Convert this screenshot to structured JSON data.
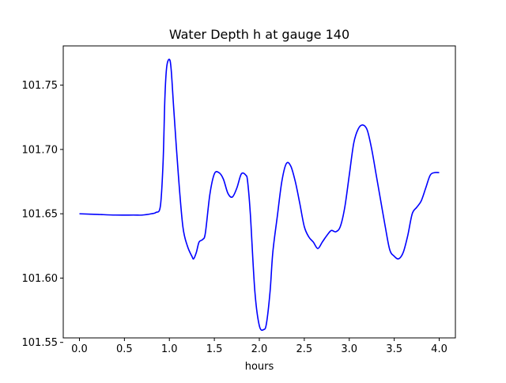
{
  "chart_data": {
    "type": "line",
    "title": "Water Depth h at gauge 140",
    "xlabel": "hours",
    "ylabel": "",
    "xlim": [
      -0.18,
      4.18
    ],
    "ylim": [
      101.5535,
      101.7805
    ],
    "xticks": [
      0.0,
      0.5,
      1.0,
      1.5,
      2.0,
      2.5,
      3.0,
      3.5,
      4.0
    ],
    "xtick_labels": [
      "0.0",
      "0.5",
      "1.0",
      "1.5",
      "2.0",
      "2.5",
      "3.0",
      "3.5",
      "4.0"
    ],
    "yticks": [
      101.55,
      101.6,
      101.65,
      101.7,
      101.75
    ],
    "ytick_labels": [
      "101.55",
      "101.60",
      "101.65",
      "101.70",
      "101.75"
    ],
    "grid": false,
    "line_color": "#0000ff",
    "series": [
      {
        "x": [
          0.0,
          0.2,
          0.4,
          0.6,
          0.7,
          0.8,
          0.85,
          0.9,
          0.93,
          0.95,
          0.97,
          1.0,
          1.02,
          1.05,
          1.1,
          1.15,
          1.2,
          1.25,
          1.27,
          1.3,
          1.33,
          1.37,
          1.4,
          1.45,
          1.5,
          1.55,
          1.6,
          1.65,
          1.7,
          1.75,
          1.8,
          1.85,
          1.87,
          1.9,
          1.95,
          2.0,
          2.05,
          2.08,
          2.12,
          2.15,
          2.2,
          2.25,
          2.3,
          2.35,
          2.4,
          2.45,
          2.5,
          2.55,
          2.6,
          2.65,
          2.7,
          2.75,
          2.8,
          2.85,
          2.9,
          2.95,
          3.0,
          3.05,
          3.1,
          3.15,
          3.2,
          3.25,
          3.3,
          3.35,
          3.4,
          3.45,
          3.5,
          3.55,
          3.6,
          3.65,
          3.7,
          3.75,
          3.8,
          3.85,
          3.9,
          3.95,
          4.0
        ],
        "y": [
          101.65,
          101.6495,
          101.649,
          101.649,
          101.649,
          101.65,
          101.651,
          101.656,
          101.69,
          101.74,
          101.764,
          101.77,
          101.762,
          101.73,
          101.68,
          101.64,
          101.625,
          101.617,
          101.615,
          101.62,
          101.628,
          101.63,
          101.635,
          101.665,
          101.681,
          101.682,
          101.677,
          101.666,
          101.663,
          101.67,
          101.681,
          101.68,
          101.675,
          101.65,
          101.59,
          101.563,
          101.56,
          101.565,
          101.59,
          101.62,
          101.648,
          101.675,
          101.689,
          101.687,
          101.675,
          101.658,
          101.64,
          101.632,
          101.628,
          101.623,
          101.628,
          101.633,
          101.637,
          101.636,
          101.64,
          101.655,
          101.68,
          101.705,
          101.716,
          101.719,
          101.715,
          101.7,
          101.68,
          101.66,
          101.64,
          101.622,
          101.617,
          101.615,
          101.62,
          101.633,
          101.65,
          101.655,
          101.66,
          101.67,
          101.68,
          101.682,
          101.682
        ]
      }
    ]
  }
}
